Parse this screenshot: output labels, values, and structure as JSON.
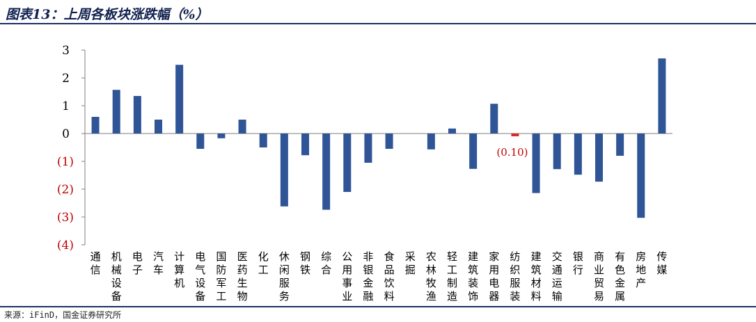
{
  "title": "图表13：上周各板块涨跌幅（%）",
  "source": "来源：iFinD，国金证券研究所",
  "colors": {
    "bar": "#2f5597",
    "highlight_bar": "#e0262b",
    "negative_label": "#c00000",
    "positive_label": "#000000",
    "axis": "#7f7f7f",
    "title": "#10204f"
  },
  "chart_data": {
    "type": "bar",
    "title": "上周各板块涨跌幅（%）",
    "xlabel": "",
    "ylabel": "",
    "ylim": [
      -4,
      3
    ],
    "yticks": [
      3,
      2,
      1,
      0,
      -1,
      -2,
      -3,
      -4
    ],
    "ytick_labels": [
      "3",
      "2",
      "1",
      "0",
      "(1)",
      "(2)",
      "(3)",
      "(4)"
    ],
    "grid": false,
    "legend": "none",
    "categories": [
      "通信",
      "机械设备",
      "电子",
      "汽车",
      "计算机",
      "电气设备",
      "国防军工",
      "医药生物",
      "化工",
      "休闲服务",
      "钢铁",
      "综合",
      "公用事业",
      "非银金融",
      "食品饮料",
      "采掘",
      "农林牧渔",
      "轻工制造",
      "建筑装饰",
      "家用电器",
      "纺织服装",
      "建筑材料",
      "交通运输",
      "银行",
      "商业贸易",
      "有色金属",
      "房地产",
      "传媒"
    ],
    "values": [
      0.6,
      1.57,
      1.35,
      0.5,
      2.47,
      -0.55,
      -0.17,
      0.5,
      -0.5,
      -2.62,
      -0.78,
      -2.74,
      -2.1,
      -1.05,
      -0.55,
      0.0,
      -0.57,
      0.18,
      -1.27,
      1.07,
      -0.1,
      -2.14,
      -1.28,
      -1.48,
      -1.73,
      -0.8,
      -3.03,
      2.7
    ],
    "highlight": {
      "index": 20,
      "label": "(0.10)"
    }
  }
}
